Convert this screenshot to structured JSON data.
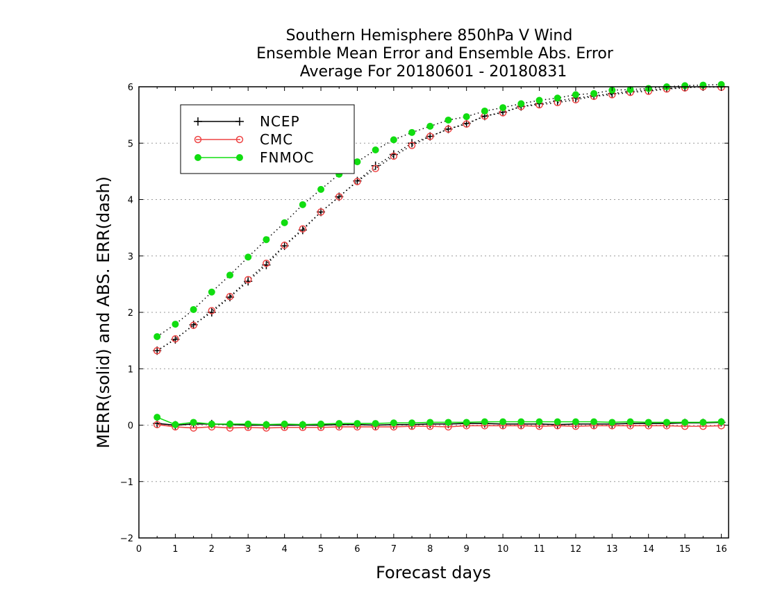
{
  "chart_data": {
    "type": "line",
    "title": [
      "Southern Hemisphere 850hPa V Wind",
      "Ensemble Mean Error and Ensemble Abs. Error",
      "Average For 20180601 - 20180831"
    ],
    "xlabel": "Forecast days",
    "ylabel": "MERR(solid) and ABS. ERR(dash)",
    "xlim": [
      0,
      16.2
    ],
    "ylim": [
      -2,
      6
    ],
    "xticks": [
      0,
      1,
      2,
      3,
      4,
      5,
      6,
      7,
      8,
      9,
      10,
      11,
      12,
      13,
      14,
      15,
      16
    ],
    "yticks": [
      -2,
      -1,
      0,
      1,
      2,
      3,
      4,
      5,
      6
    ],
    "grid": "horizontal dotted",
    "legend_position": "top-left",
    "x": [
      0.5,
      1,
      1.5,
      2,
      2.5,
      3,
      3.5,
      4,
      4.5,
      5,
      5.5,
      6,
      6.5,
      7,
      7.5,
      8,
      8.5,
      9,
      9.5,
      10,
      10.5,
      11,
      11.5,
      12,
      12.5,
      13,
      13.5,
      14,
      14.5,
      15,
      15.5,
      16
    ],
    "series": [
      {
        "name": "NCEP",
        "color": "#000000",
        "marker": "plus",
        "merr": [
          0.03,
          0.0,
          0.02,
          0.02,
          0.01,
          0.0,
          0.0,
          0.0,
          0.0,
          0.0,
          0.01,
          0.01,
          0.0,
          0.01,
          0.01,
          0.02,
          0.02,
          0.03,
          0.03,
          0.02,
          0.02,
          0.02,
          0.01,
          0.02,
          0.02,
          0.02,
          0.03,
          0.03,
          0.03,
          0.04,
          0.04,
          0.05
        ],
        "abs_err": [
          1.32,
          1.52,
          1.78,
          2.0,
          2.27,
          2.55,
          2.84,
          3.18,
          3.46,
          3.78,
          4.05,
          4.33,
          4.6,
          4.8,
          5.0,
          5.12,
          5.25,
          5.35,
          5.48,
          5.55,
          5.65,
          5.7,
          5.75,
          5.8,
          5.84,
          5.88,
          5.92,
          5.94,
          5.97,
          5.99,
          6.0,
          6.0
        ]
      },
      {
        "name": "CMC",
        "color": "#ee4444",
        "marker": "open-circle",
        "merr": [
          0.01,
          -0.03,
          -0.05,
          -0.03,
          -0.05,
          -0.04,
          -0.05,
          -0.04,
          -0.04,
          -0.04,
          -0.03,
          -0.03,
          -0.03,
          -0.03,
          -0.02,
          -0.02,
          -0.03,
          -0.01,
          -0.01,
          -0.01,
          -0.01,
          -0.02,
          -0.01,
          -0.02,
          -0.01,
          -0.01,
          -0.01,
          -0.01,
          -0.01,
          -0.02,
          -0.02,
          -0.01
        ],
        "abs_err": [
          1.32,
          1.53,
          1.77,
          2.03,
          2.28,
          2.58,
          2.87,
          3.19,
          3.48,
          3.78,
          4.05,
          4.32,
          4.55,
          4.77,
          4.96,
          5.12,
          5.25,
          5.34,
          5.48,
          5.54,
          5.65,
          5.68,
          5.72,
          5.77,
          5.83,
          5.86,
          5.9,
          5.92,
          5.96,
          5.98,
          6.0,
          5.99
        ]
      },
      {
        "name": "FNMOC",
        "color": "#11dd11",
        "marker": "filled-circle",
        "merr": [
          0.14,
          0.01,
          0.05,
          0.02,
          0.02,
          0.02,
          0.01,
          0.02,
          0.01,
          0.02,
          0.03,
          0.03,
          0.03,
          0.04,
          0.04,
          0.05,
          0.05,
          0.05,
          0.06,
          0.06,
          0.06,
          0.06,
          0.06,
          0.06,
          0.06,
          0.05,
          0.06,
          0.05,
          0.05,
          0.05,
          0.05,
          0.06
        ],
        "abs_err": [
          1.57,
          1.79,
          2.05,
          2.36,
          2.66,
          2.98,
          3.29,
          3.59,
          3.91,
          4.18,
          4.45,
          4.67,
          4.88,
          5.06,
          5.19,
          5.3,
          5.41,
          5.47,
          5.57,
          5.63,
          5.7,
          5.76,
          5.8,
          5.86,
          5.88,
          5.94,
          5.95,
          5.97,
          6.0,
          6.02,
          6.03,
          6.04
        ]
      }
    ]
  }
}
